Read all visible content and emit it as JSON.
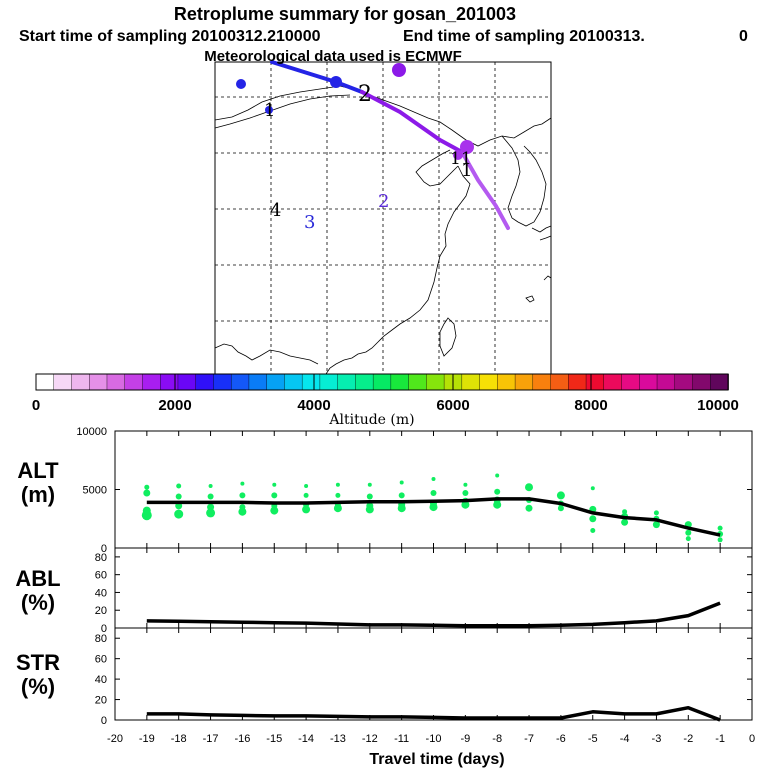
{
  "title": "Retroplume summary for gosan_201003",
  "subtitle_left": "Start time of sampling 20100312.210000",
  "subtitle_right": "End time of sampling 20100313.",
  "subtitle_tail": "0",
  "met_line": "Meteorological data used is ECMWF",
  "colorbar": {
    "label": "Altitude  (m)",
    "min": 0,
    "max": 10000,
    "tick_labels": [
      "0",
      "2000",
      "4000",
      "6000",
      "8000",
      "10000"
    ],
    "colors": [
      "#ffffff",
      "#f6d8f6",
      "#eeb6ee",
      "#e590e8",
      "#d86ae2",
      "#c440e6",
      "#a81ef0",
      "#8a0cf4",
      "#6a06f6",
      "#3010f8",
      "#1830f8",
      "#1458f8",
      "#0a7cf6",
      "#06a2f4",
      "#06c6f2",
      "#06e6ee",
      "#06eed4",
      "#06eeb0",
      "#06ee8c",
      "#06ea64",
      "#18e83c",
      "#50e81c",
      "#86e40c",
      "#b6e206",
      "#dee206",
      "#f6e006",
      "#f8c406",
      "#f8a20a",
      "#f8800e",
      "#f45e14",
      "#f02818",
      "#ee0a30",
      "#ec0a5c",
      "#e60a84",
      "#da0a9c",
      "#c40a94",
      "#a40a80",
      "#82086c",
      "#60065c"
    ]
  },
  "map": {
    "trajectory_labels": [
      "1",
      "2",
      "3",
      "4",
      "2",
      "1",
      "11"
    ],
    "colors": {
      "blue": "#2424e6",
      "violet": "#8c1ae8",
      "purple": "#a832ec",
      "magenta": "#b45af0"
    }
  },
  "chart_data": [
    {
      "type": "line",
      "panel": "ALT",
      "ylabel_line1": "ALT",
      "ylabel_line2": "(m)",
      "ylim": [
        0,
        10000
      ],
      "ytick_labels": [
        "0",
        "5000",
        "10000"
      ],
      "xlim": [
        -20,
        0
      ],
      "x": [
        -19,
        -18,
        -17,
        -16,
        -15,
        -14,
        -13,
        -12,
        -11,
        -10,
        -9,
        -8,
        -7,
        -6,
        -5,
        -4,
        -3,
        -2,
        -1
      ],
      "mean": [
        3900,
        3900,
        3900,
        3900,
        3850,
        3850,
        3900,
        3950,
        3950,
        4000,
        4050,
        4200,
        4200,
        3800,
        3000,
        2600,
        2400,
        1700,
        1100
      ],
      "scatter_color": "#10ee60",
      "line_color": "#000000",
      "spread_points": [
        [
          -19,
          2800,
          8
        ],
        [
          -19,
          3200,
          6
        ],
        [
          -19,
          4700,
          5
        ],
        [
          -19,
          5200,
          3
        ],
        [
          -18,
          2900,
          7
        ],
        [
          -18,
          3600,
          5
        ],
        [
          -18,
          4400,
          4
        ],
        [
          -18,
          5300,
          3
        ],
        [
          -17,
          3000,
          7
        ],
        [
          -17,
          3500,
          5
        ],
        [
          -17,
          4400,
          4
        ],
        [
          -17,
          5300,
          2
        ],
        [
          -16,
          3100,
          6
        ],
        [
          -16,
          3500,
          4
        ],
        [
          -16,
          4500,
          4
        ],
        [
          -16,
          5500,
          2
        ],
        [
          -15,
          3200,
          6
        ],
        [
          -15,
          3600,
          4
        ],
        [
          -15,
          4500,
          4
        ],
        [
          -15,
          5400,
          2
        ],
        [
          -14,
          3300,
          6
        ],
        [
          -14,
          3700,
          4
        ],
        [
          -14,
          4500,
          3
        ],
        [
          -14,
          5300,
          2
        ],
        [
          -13,
          3400,
          6
        ],
        [
          -13,
          3700,
          4
        ],
        [
          -13,
          4500,
          3
        ],
        [
          -13,
          5400,
          2
        ],
        [
          -12,
          3300,
          6
        ],
        [
          -12,
          3600,
          5
        ],
        [
          -12,
          4400,
          4
        ],
        [
          -12,
          5400,
          2
        ],
        [
          -11,
          3400,
          6
        ],
        [
          -11,
          3700,
          5
        ],
        [
          -11,
          4500,
          4
        ],
        [
          -11,
          5600,
          2
        ],
        [
          -10,
          3500,
          6
        ],
        [
          -10,
          3800,
          5
        ],
        [
          -10,
          4700,
          4
        ],
        [
          -10,
          5900,
          2
        ],
        [
          -9,
          3700,
          6
        ],
        [
          -9,
          4000,
          5
        ],
        [
          -9,
          4700,
          4
        ],
        [
          -9,
          5400,
          2
        ],
        [
          -8,
          3700,
          6
        ],
        [
          -8,
          4100,
          5
        ],
        [
          -8,
          4800,
          4
        ],
        [
          -8,
          6200,
          2
        ],
        [
          -7,
          3400,
          5
        ],
        [
          -7,
          4100,
          4
        ],
        [
          -7,
          5200,
          6
        ],
        [
          -6,
          3400,
          4
        ],
        [
          -6,
          3800,
          4
        ],
        [
          -6,
          4500,
          6
        ],
        [
          -5,
          1500,
          3
        ],
        [
          -5,
          2500,
          5
        ],
        [
          -5,
          3300,
          5
        ],
        [
          -5,
          5100,
          2
        ],
        [
          -4,
          2200,
          5
        ],
        [
          -4,
          2700,
          5
        ],
        [
          -4,
          3100,
          3
        ],
        [
          -3,
          2000,
          5
        ],
        [
          -3,
          2500,
          4
        ],
        [
          -3,
          3000,
          3
        ],
        [
          -2,
          800,
          3
        ],
        [
          -2,
          1300,
          4
        ],
        [
          -2,
          2000,
          5
        ],
        [
          -1,
          700,
          3
        ],
        [
          -1,
          1200,
          4
        ],
        [
          -1,
          1700,
          3
        ]
      ]
    },
    {
      "type": "line",
      "panel": "ABL",
      "ylabel_line1": "ABL",
      "ylabel_line2": "(%)",
      "ylim": [
        0,
        90
      ],
      "ytick_labels": [
        "0",
        "20",
        "40",
        "60",
        "80"
      ],
      "xlim": [
        -20,
        0
      ],
      "x": [
        -19,
        -18,
        -17,
        -16,
        -15,
        -14,
        -13,
        -12,
        -11,
        -10,
        -9,
        -8,
        -7,
        -6,
        -5,
        -4,
        -3,
        -2,
        -1
      ],
      "values": [
        8,
        7.5,
        7,
        6.5,
        6,
        5.5,
        4.5,
        3.5,
        3.5,
        3,
        2.5,
        2.5,
        2.5,
        3,
        4,
        6,
        8,
        14,
        28
      ]
    },
    {
      "type": "line",
      "panel": "STR",
      "ylabel_line1": "STR",
      "ylabel_line2": "(%)",
      "ylim": [
        0,
        90
      ],
      "ytick_labels": [
        "0",
        "20",
        "40",
        "60",
        "80"
      ],
      "xlim": [
        -20,
        0
      ],
      "x": [
        -19,
        -18,
        -17,
        -16,
        -15,
        -14,
        -13,
        -12,
        -11,
        -10,
        -9,
        -8,
        -7,
        -6,
        -5,
        -4,
        -3,
        -2,
        -1
      ],
      "values": [
        6,
        6,
        5,
        4.5,
        4,
        4,
        3.5,
        3,
        3,
        2.5,
        2,
        2,
        2,
        2,
        8,
        6,
        6,
        12,
        0
      ],
      "xtick_labels": [
        "-20",
        "-19",
        "-18",
        "-17",
        "-16",
        "-15",
        "-14",
        "-13",
        "-12",
        "-11",
        "-10",
        "-9",
        "-8",
        "-7",
        "-6",
        "-5",
        "-4",
        "-3",
        "-2",
        "-1",
        "0"
      ],
      "xlabel": "Travel time (days)"
    }
  ]
}
